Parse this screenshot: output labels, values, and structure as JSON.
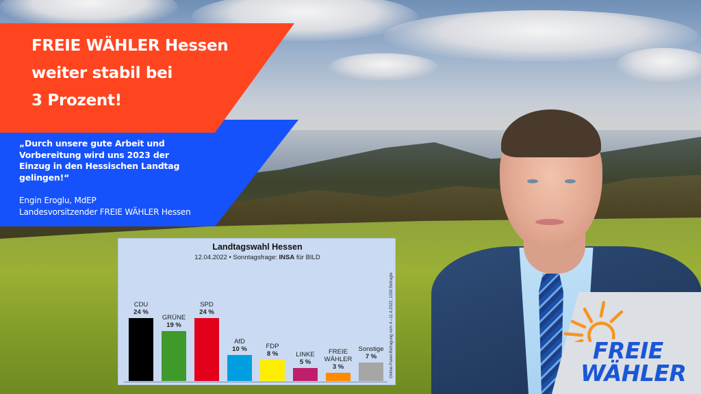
{
  "headline": {
    "lines": [
      "FREIE WÄHLER Hessen",
      "weiter stabil bei",
      "3 Prozent!"
    ],
    "background_color": "#fe4520",
    "text_color": "#ffffff"
  },
  "quote": {
    "lines": [
      "„Durch unsere gute Arbeit und",
      "Vorbereitung wird uns 2023 der",
      "Einzug in den Hessischen Landtag",
      "gelingen!“"
    ],
    "author_lines": [
      "Engin Eroglu, MdEP",
      "Landesvorsitzender FREIE WÄHLER Hessen"
    ],
    "background_color": "#1652fc"
  },
  "poll": {
    "title": "Landtagswahl Hessen",
    "subtitle_prefix": "12.04.2022 • Sonntagsfrage: ",
    "subtitle_institute": "INSA",
    "subtitle_suffix": " für BILD",
    "source_note": "Online-Panel-Befragung vom 4.–11.4.2022, 1000 Befragte",
    "parties": [
      {
        "label": "CDU",
        "value_label": "24 %",
        "color": "#000000"
      },
      {
        "label": "GRÜNE",
        "value_label": "19 %",
        "color": "#3f9a2c"
      },
      {
        "label": "SPD",
        "value_label": "24 %",
        "color": "#e3001b"
      },
      {
        "label": "AfD",
        "value_label": "10 %",
        "color": "#009ee0"
      },
      {
        "label": "FDP",
        "value_label": "8 %",
        "color": "#ffed00"
      },
      {
        "label": "LINKE",
        "value_label": "5 %",
        "color": "#be1e6a"
      },
      {
        "label": "FREIE\nWÄHLER",
        "value_label": "3 %",
        "color": "#ff8a00"
      },
      {
        "label": "Sonstige",
        "value_label": "7 %",
        "color": "#a6a6a6"
      }
    ]
  },
  "chart_data": {
    "type": "bar",
    "title": "Landtagswahl Hessen",
    "subtitle": "12.04.2022 • Sonntagsfrage: INSA für BILD",
    "categories": [
      "CDU",
      "GRÜNE",
      "SPD",
      "AfD",
      "FDP",
      "LINKE",
      "FREIE WÄHLER",
      "Sonstige"
    ],
    "values": [
      24,
      19,
      24,
      10,
      8,
      5,
      3,
      7
    ],
    "colors": [
      "#000000",
      "#3f9a2c",
      "#e3001b",
      "#009ee0",
      "#ffed00",
      "#be1e6a",
      "#ff8a00",
      "#a6a6a6"
    ],
    "unit": "%",
    "xlabel": "",
    "ylabel": "",
    "ylim": [
      0,
      30
    ],
    "grid": false,
    "legend": "none",
    "annotations": [
      "Online-Panel-Befragung vom 4.–11.4.2022, 1000 Befragte"
    ]
  },
  "logo": {
    "lines": [
      "FREIE",
      "WÄHLER"
    ],
    "text_color": "#1a56d6",
    "sun_color": "#f7941d"
  }
}
